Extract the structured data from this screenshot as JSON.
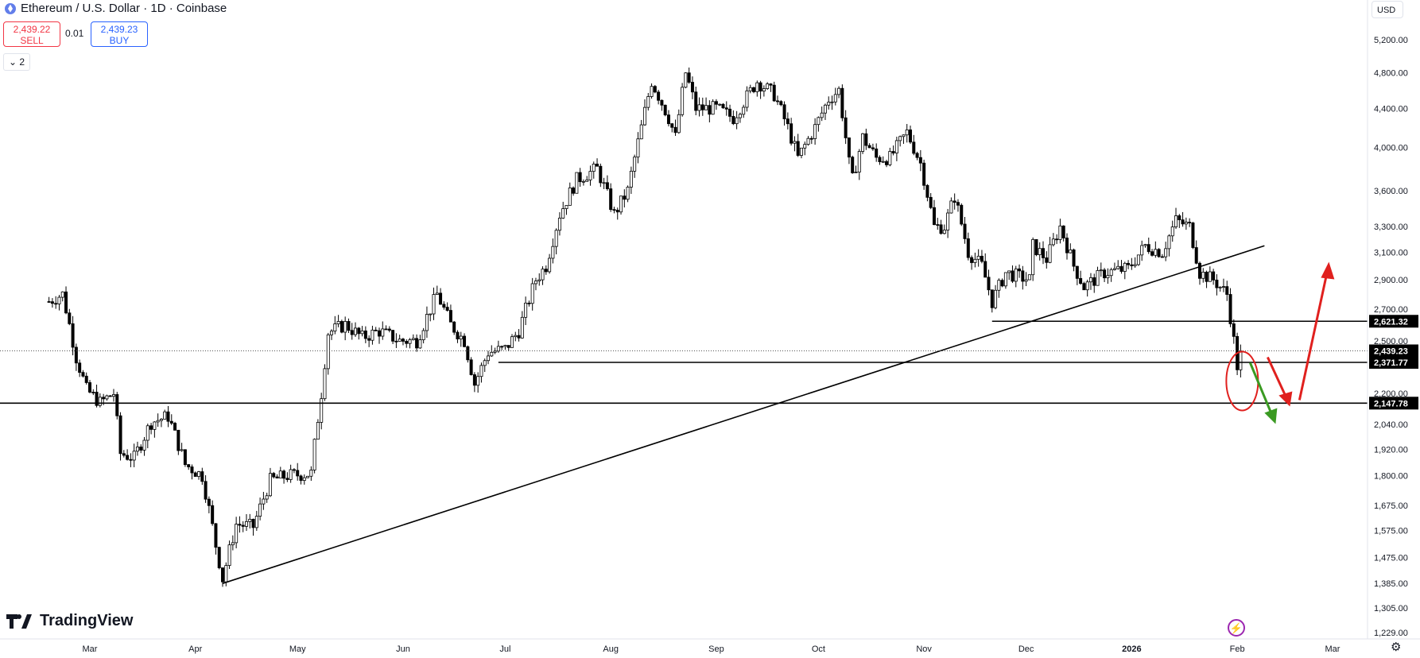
{
  "header": {
    "title": "Ethereum / U.S. Dollar · 1D · Coinbase"
  },
  "trade": {
    "sell_price": "2,439.22",
    "sell_label": "SELL",
    "spread": "0.01",
    "buy_price": "2,439.23",
    "buy_label": "BUY"
  },
  "collapse_label": "2",
  "currency": "USD",
  "logo_text": "TradingView",
  "chart_data": {
    "type": "candlestick",
    "x_tick_labels": [
      "Mar",
      "Apr",
      "May",
      "Jun",
      "Jul",
      "Aug",
      "Sep",
      "Oct",
      "Nov",
      "Dec",
      "2026",
      "Feb",
      "Mar"
    ],
    "y_tick_labels": [
      "5,200.00",
      "4,800.00",
      "4,400.00",
      "4,000.00",
      "3,600.00",
      "3,300.00",
      "3,100.00",
      "2,900.00",
      "2,700.00",
      "2,500.00",
      "2,200.00",
      "2,040.00",
      "1,920.00",
      "1,800.00",
      "1,675.00",
      "1,575.00",
      "1,475.00",
      "1,385.00",
      "1,305.00",
      "1,229.00"
    ],
    "y_scale": "log",
    "current_price_label": "2,439.23",
    "horizontal_levels": [
      "2,621.32",
      "2,371.77",
      "2,147.78"
    ],
    "trendline": {
      "from": [
        "2025-04-09",
        1385
      ],
      "to": [
        "2026-02-09",
        3150
      ]
    },
    "close_path": [
      [
        "2025-02-17",
        2750
      ],
      [
        "2025-02-21",
        2800
      ],
      [
        "2025-02-25",
        2400
      ],
      [
        "2025-02-28",
        2220
      ],
      [
        "2025-03-04",
        2150
      ],
      [
        "2025-03-08",
        2200
      ],
      [
        "2025-03-10",
        1900
      ],
      [
        "2025-03-14",
        1880
      ],
      [
        "2025-03-19",
        2050
      ],
      [
        "2025-03-24",
        2080
      ],
      [
        "2025-03-29",
        1850
      ],
      [
        "2025-04-03",
        1800
      ],
      [
        "2025-04-07",
        1520
      ],
      [
        "2025-04-09",
        1400
      ],
      [
        "2025-04-13",
        1600
      ],
      [
        "2025-04-18",
        1590
      ],
      [
        "2025-04-23",
        1780
      ],
      [
        "2025-04-28",
        1800
      ],
      [
        "2025-05-05",
        1810
      ],
      [
        "2025-05-08",
        2200
      ],
      [
        "2025-05-10",
        2550
      ],
      [
        "2025-05-15",
        2600
      ],
      [
        "2025-05-20",
        2520
      ],
      [
        "2025-05-25",
        2560
      ],
      [
        "2025-05-31",
        2500
      ],
      [
        "2025-06-05",
        2500
      ],
      [
        "2025-06-11",
        2800
      ],
      [
        "2025-06-15",
        2600
      ],
      [
        "2025-06-19",
        2500
      ],
      [
        "2025-06-22",
        2250
      ],
      [
        "2025-06-26",
        2430
      ],
      [
        "2025-07-01",
        2450
      ],
      [
        "2025-07-05",
        2560
      ],
      [
        "2025-07-10",
        2900
      ],
      [
        "2025-07-13",
        3000
      ],
      [
        "2025-07-17",
        3400
      ],
      [
        "2025-07-22",
        3700
      ],
      [
        "2025-07-28",
        3800
      ],
      [
        "2025-08-02",
        3400
      ],
      [
        "2025-08-06",
        3600
      ],
      [
        "2025-08-10",
        4200
      ],
      [
        "2025-08-13",
        4700
      ],
      [
        "2025-08-18",
        4300
      ],
      [
        "2025-08-20",
        4100
      ],
      [
        "2025-08-23",
        4800
      ],
      [
        "2025-08-26",
        4400
      ],
      [
        "2025-09-01",
        4400
      ],
      [
        "2025-09-06",
        4300
      ],
      [
        "2025-09-13",
        4700
      ],
      [
        "2025-09-18",
        4550
      ],
      [
        "2025-09-22",
        4200
      ],
      [
        "2025-09-25",
        3900
      ],
      [
        "2025-09-30",
        4200
      ],
      [
        "2025-10-04",
        4500
      ],
      [
        "2025-10-07",
        4600
      ],
      [
        "2025-10-10",
        3850
      ],
      [
        "2025-10-11",
        3700
      ],
      [
        "2025-10-14",
        4100
      ],
      [
        "2025-10-18",
        3900
      ],
      [
        "2025-10-22",
        3900
      ],
      [
        "2025-10-27",
        4150
      ],
      [
        "2025-10-31",
        3850
      ],
      [
        "2025-11-04",
        3300
      ],
      [
        "2025-11-07",
        3300
      ],
      [
        "2025-11-10",
        3550
      ],
      [
        "2025-11-14",
        3100
      ],
      [
        "2025-11-18",
        3000
      ],
      [
        "2025-11-21",
        2750
      ],
      [
        "2025-11-25",
        2950
      ],
      [
        "2025-12-02",
        2900
      ],
      [
        "2025-12-03",
        3150
      ],
      [
        "2025-12-07",
        3050
      ],
      [
        "2025-12-11",
        3300
      ],
      [
        "2025-12-15",
        3000
      ],
      [
        "2025-12-18",
        2850
      ],
      [
        "2025-12-24",
        2950
      ],
      [
        "2025-12-31",
        2980
      ],
      [
        "2026-01-05",
        3150
      ],
      [
        "2026-01-10",
        3100
      ],
      [
        "2026-01-14",
        3350
      ],
      [
        "2026-01-18",
        3300
      ],
      [
        "2026-01-21",
        2950
      ],
      [
        "2026-01-25",
        2900
      ],
      [
        "2026-01-29",
        2800
      ],
      [
        "2026-02-01",
        2350
      ],
      [
        "2026-02-02",
        2439
      ]
    ],
    "annotations": [
      "red circle around latest candles",
      "green arrow pointing down",
      "red arrow pointing down",
      "red arrow pointing up"
    ]
  }
}
